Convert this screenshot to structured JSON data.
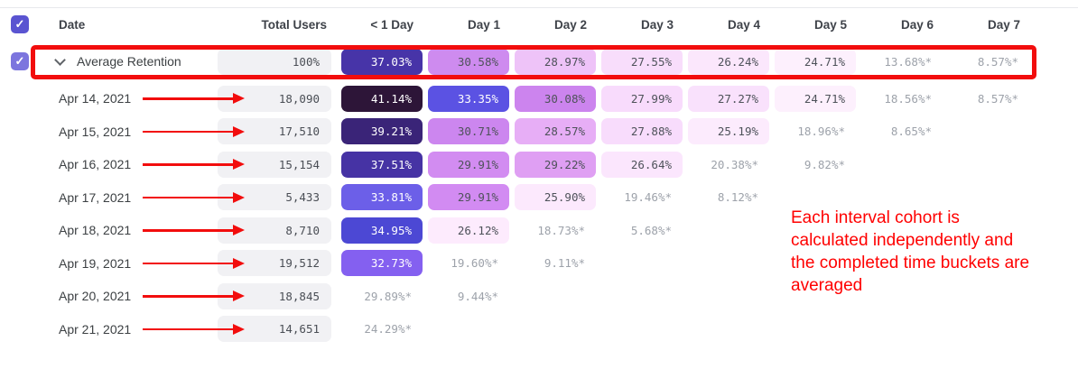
{
  "table": {
    "columns": [
      "Date",
      "Total Users",
      "< 1 Day",
      "Day 1",
      "Day 2",
      "Day 3",
      "Day 4",
      "Day 5",
      "Day 6",
      "Day 7"
    ],
    "average_row": {
      "label": "Average Retention",
      "total": "100%",
      "cells": [
        {
          "text": "37.03%",
          "bg": "#4734A8",
          "fg": "#FFFFFF"
        },
        {
          "text": "30.58%",
          "bg": "#CE8BEF"
        },
        {
          "text": "28.97%",
          "bg": "#EEC3F8"
        },
        {
          "text": "27.55%",
          "bg": "#F8DDFB"
        },
        {
          "text": "26.24%",
          "bg": "#FBE7FC"
        },
        {
          "text": "24.71%",
          "bg": "#FDF0FD"
        },
        {
          "text": "13.68%*",
          "bg": null
        },
        {
          "text": "8.57%*",
          "bg": null
        }
      ]
    },
    "rows": [
      {
        "date": "Apr 14, 2021",
        "total": "18,090",
        "cells": [
          {
            "text": "41.14%",
            "bg": "#2D1538",
            "fg": "#FFFFFF"
          },
          {
            "text": "33.35%",
            "bg": "#5B52E3",
            "fg": "#FFFFFF"
          },
          {
            "text": "30.08%",
            "bg": "#CC84EE"
          },
          {
            "text": "27.99%",
            "bg": "#F8DBFC"
          },
          {
            "text": "27.27%",
            "bg": "#F9E1FC"
          },
          {
            "text": "24.71%",
            "bg": "#FDF0FD"
          },
          {
            "text": "18.56%*",
            "bg": null
          },
          {
            "text": "8.57%*",
            "bg": null
          }
        ]
      },
      {
        "date": "Apr 15, 2021",
        "total": "17,510",
        "cells": [
          {
            "text": "39.21%",
            "bg": "#3A2478",
            "fg": "#FFFFFF"
          },
          {
            "text": "30.71%",
            "bg": "#CC86EF"
          },
          {
            "text": "28.57%",
            "bg": "#E7AEF6"
          },
          {
            "text": "27.88%",
            "bg": "#F8DCFC"
          },
          {
            "text": "25.19%",
            "bg": "#FCEBFD"
          },
          {
            "text": "18.96%*",
            "bg": null
          },
          {
            "text": "8.65%*",
            "bg": null
          },
          null
        ]
      },
      {
        "date": "Apr 16, 2021",
        "total": "15,154",
        "cells": [
          {
            "text": "37.51%",
            "bg": "#4633A4",
            "fg": "#FFFFFF"
          },
          {
            "text": "29.91%",
            "bg": "#D28CF1"
          },
          {
            "text": "29.22%",
            "bg": "#DF9FF3"
          },
          {
            "text": "26.64%",
            "bg": "#FBE6FD"
          },
          {
            "text": "20.38%*",
            "bg": null
          },
          {
            "text": "9.82%*",
            "bg": null
          },
          null,
          null
        ]
      },
      {
        "date": "Apr 17, 2021",
        "total": "5,433",
        "cells": [
          {
            "text": "33.81%",
            "bg": "#6C5FE8",
            "fg": "#FFFFFF"
          },
          {
            "text": "29.91%",
            "bg": "#D28BF2"
          },
          {
            "text": "25.90%",
            "bg": "#FCE9FD"
          },
          {
            "text": "19.46%*",
            "bg": null
          },
          {
            "text": "8.12%*",
            "bg": null
          },
          null,
          null,
          null
        ]
      },
      {
        "date": "Apr 18, 2021",
        "total": "8,710",
        "cells": [
          {
            "text": "34.95%",
            "bg": "#4C48D4",
            "fg": "#FFFFFF"
          },
          {
            "text": "26.12%",
            "bg": "#FDEBFD"
          },
          {
            "text": "18.73%*",
            "bg": null
          },
          {
            "text": "5.68%*",
            "bg": null
          },
          null,
          null,
          null,
          null
        ]
      },
      {
        "date": "Apr 19, 2021",
        "total": "19,512",
        "cells": [
          {
            "text": "32.73%",
            "bg": "#8460F0",
            "fg": "#FFFFFF"
          },
          {
            "text": "19.60%*",
            "bg": null
          },
          {
            "text": "9.11%*",
            "bg": null
          },
          null,
          null,
          null,
          null,
          null
        ]
      },
      {
        "date": "Apr 20, 2021",
        "total": "18,845",
        "cells": [
          {
            "text": "29.89%*",
            "bg": null
          },
          {
            "text": "9.44%*",
            "bg": null
          },
          null,
          null,
          null,
          null,
          null,
          null
        ]
      },
      {
        "date": "Apr 21, 2021",
        "total": "14,651",
        "cells": [
          {
            "text": "24.29%*",
            "bg": null
          },
          null,
          null,
          null,
          null,
          null,
          null,
          null
        ]
      }
    ]
  },
  "checkboxes": {
    "header_checked": "✓",
    "row_checked": "✓",
    "header_color": "#5A54D1",
    "row_color": "#7C75DE"
  },
  "annotation": {
    "lines": [
      "Each interval cohort is",
      "calculated independently and",
      "the completed time buckets are",
      "averaged"
    ],
    "text_color": "#FF0000",
    "shape_color": "#F20D0D"
  },
  "styles": {
    "estimated_text_color": "#9DA2AA",
    "cell_text_color": "#4E525A",
    "total_cell_bg": "#F1F1F4"
  }
}
